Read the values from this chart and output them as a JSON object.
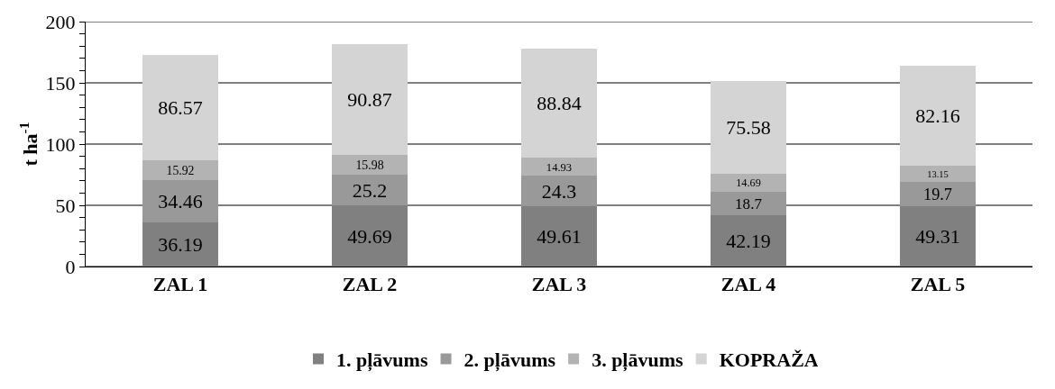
{
  "chart_data": {
    "type": "bar",
    "stacked": true,
    "ylabel": "t ha$^{-1}$",
    "categories": [
      "ZAL 1",
      "ZAL 2",
      "ZAL 3",
      "ZAL 4",
      "ZAL 5"
    ],
    "series": [
      {
        "name": "1. pļāvums",
        "color": "#808080",
        "values": [
          36.19,
          49.69,
          49.61,
          42.19,
          49.31
        ]
      },
      {
        "name": "2. pļāvums",
        "color": "#999999",
        "values": [
          34.46,
          25.2,
          24.3,
          18.7,
          19.7
        ]
      },
      {
        "name": "3. pļāvums",
        "color": "#b3b3b3",
        "values": [
          15.92,
          15.98,
          14.93,
          14.69,
          13.15
        ]
      },
      {
        "name": "KOPRAŽA",
        "color": "#d4d4d4",
        "values": [
          86.57,
          90.87,
          88.84,
          75.58,
          82.16
        ]
      }
    ],
    "ylim": [
      0,
      200
    ],
    "yticks": [
      0,
      {
        "value": 10,
        "label": null
      },
      {
        "value": 20,
        "label": null
      },
      {
        "value": 30,
        "label": null
      },
      {
        "value": 40,
        "label": null
      },
      50,
      {
        "value": 60,
        "label": null
      },
      {
        "value": 70,
        "label": null
      },
      {
        "value": 80,
        "label": null
      },
      {
        "value": 90,
        "label": null
      },
      100,
      {
        "value": 110,
        "label": null
      },
      {
        "value": 120,
        "label": null
      },
      {
        "value": 130,
        "label": null
      },
      {
        "value": 140,
        "label": null
      },
      150,
      {
        "value": 160,
        "label": null
      },
      {
        "value": 170,
        "label": null
      },
      {
        "value": 180,
        "label": null
      },
      {
        "value": 190,
        "label": null
      },
      200
    ],
    "grid": "y",
    "legend": "bottom",
    "data_labels": true
  }
}
